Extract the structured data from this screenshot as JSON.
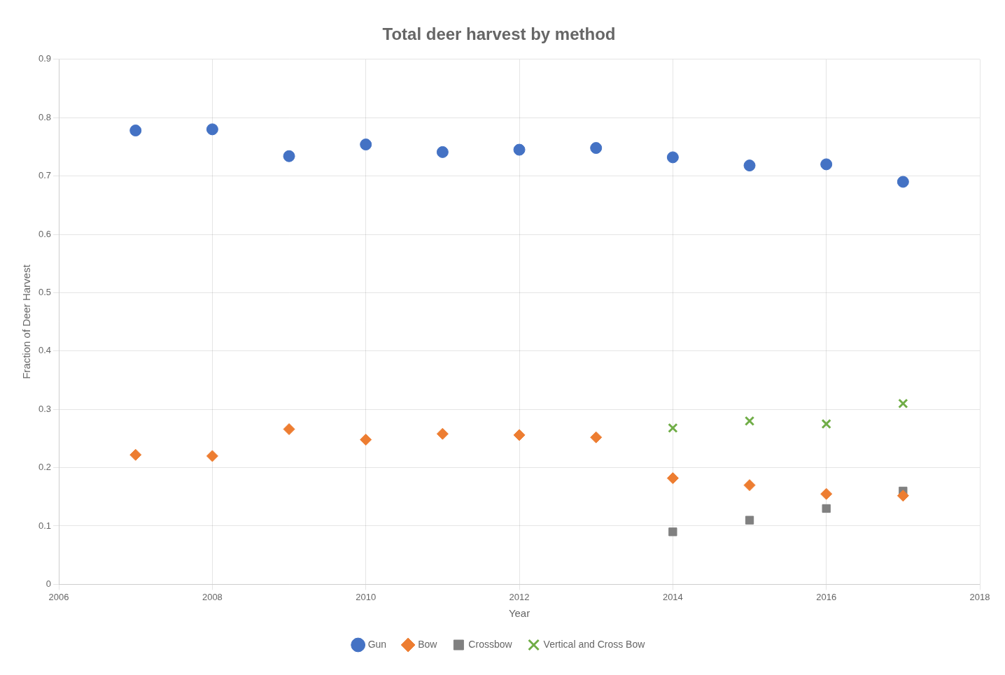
{
  "chart_data": {
    "type": "scatter",
    "title": "Total deer harvest by method",
    "xlabel": "Year",
    "ylabel": "Fraction of Deer Harvest",
    "xlim": [
      2006,
      2018
    ],
    "xticks": [
      2006,
      2008,
      2010,
      2012,
      2014,
      2016,
      2018
    ],
    "ylim": [
      0,
      0.9
    ],
    "yticks": [
      0,
      0.1,
      0.2,
      0.3,
      0.4,
      0.5,
      0.6,
      0.7,
      0.8,
      0.9
    ],
    "grid": true,
    "legend": "bottom",
    "series": [
      {
        "name": "Gun",
        "color": "#4472C4",
        "marker": "circle",
        "x": [
          2007,
          2008,
          2009,
          2010,
          2011,
          2012,
          2013,
          2014,
          2015,
          2016,
          2017
        ],
        "values": [
          0.778,
          0.78,
          0.734,
          0.754,
          0.741,
          0.745,
          0.748,
          0.732,
          0.718,
          0.72,
          0.69
        ]
      },
      {
        "name": "Bow",
        "color": "#ED7D31",
        "marker": "diamond",
        "x": [
          2007,
          2008,
          2009,
          2010,
          2011,
          2012,
          2013,
          2014,
          2015,
          2016,
          2017
        ],
        "values": [
          0.222,
          0.22,
          0.266,
          0.248,
          0.258,
          0.256,
          0.252,
          0.182,
          0.17,
          0.155,
          0.152
        ]
      },
      {
        "name": "Crossbow",
        "color": "#808080",
        "marker": "square",
        "x": [
          2014,
          2015,
          2016,
          2017
        ],
        "values": [
          0.09,
          0.11,
          0.13,
          0.16
        ]
      },
      {
        "name": "Vertical and Cross Bow",
        "color": "#70AD47",
        "marker": "x",
        "x": [
          2014,
          2015,
          2016,
          2017
        ],
        "values": [
          0.268,
          0.28,
          0.275,
          0.31
        ]
      }
    ]
  }
}
